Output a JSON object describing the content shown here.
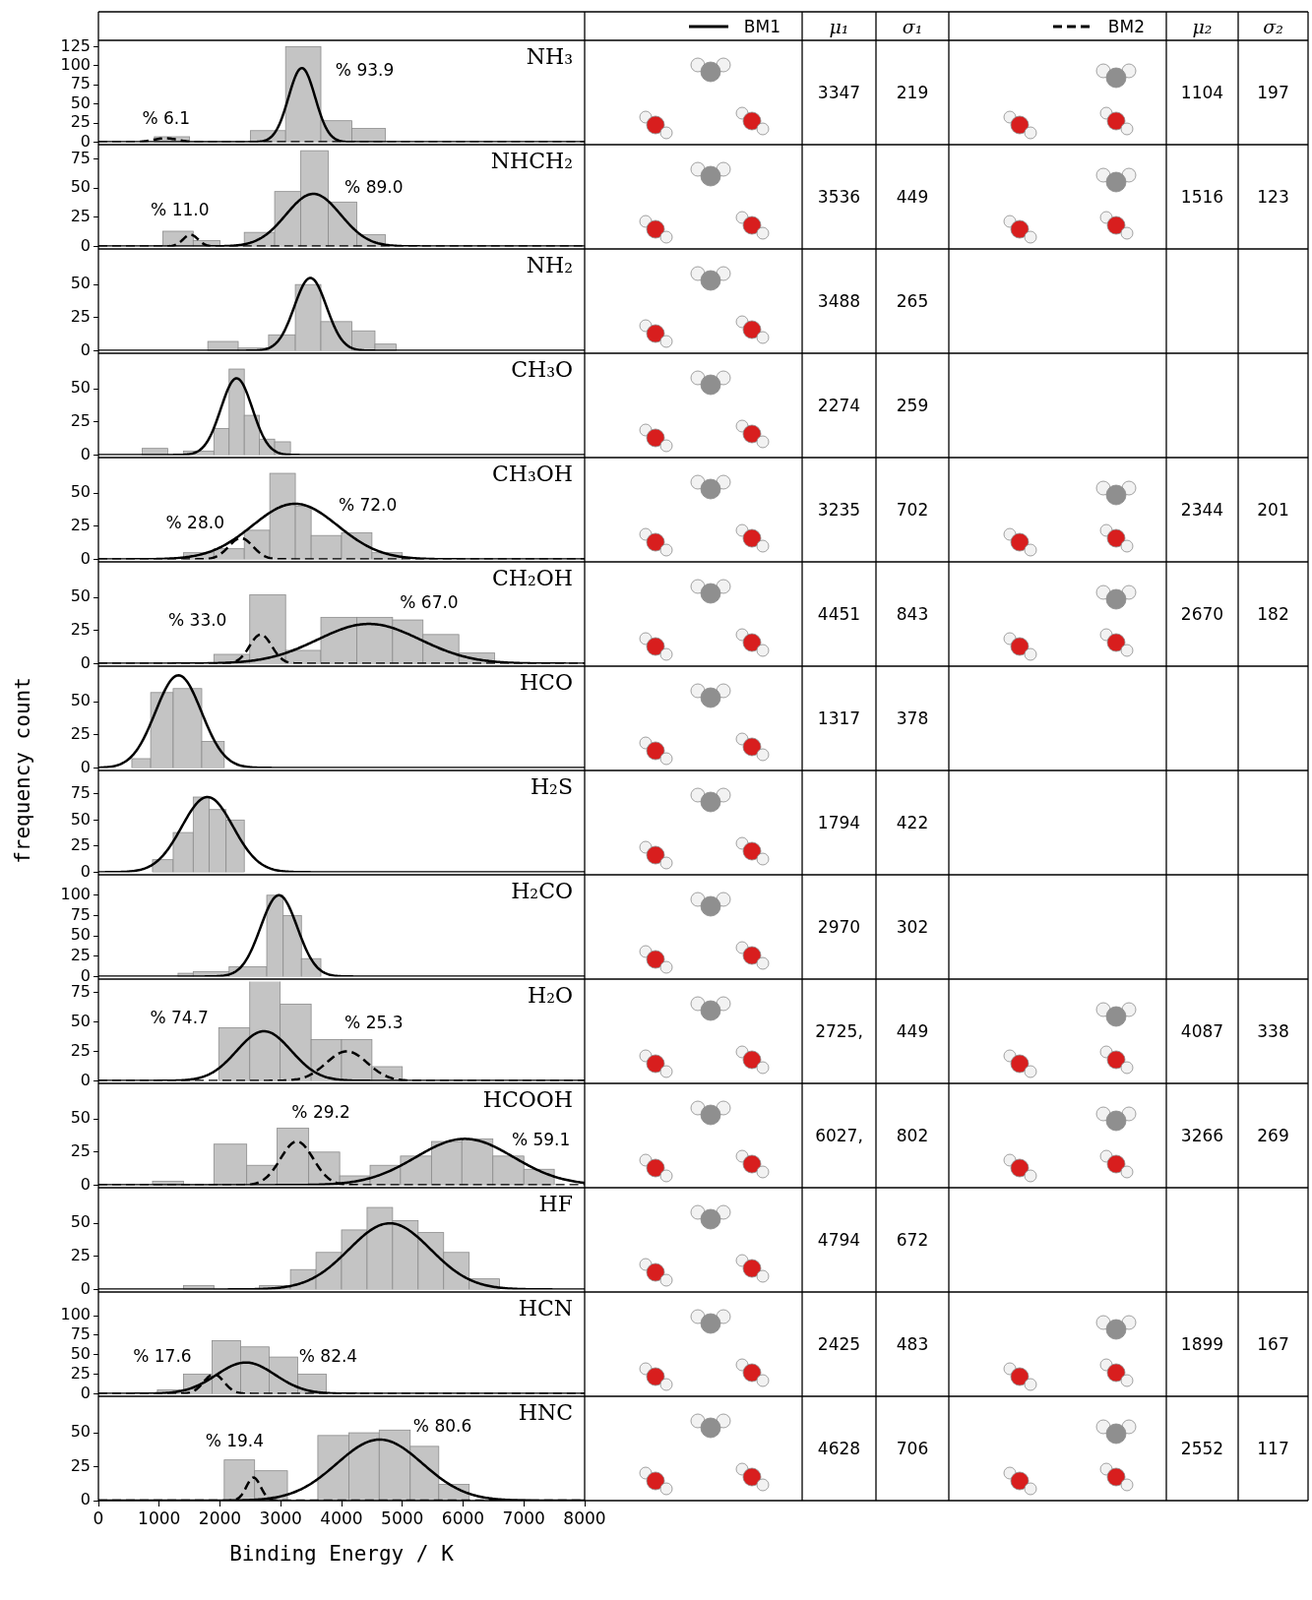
{
  "header": {
    "groups": [
      {
        "name": "BM1",
        "line_style": "solid",
        "mu": "μ₁",
        "sigma": "σ₁"
      },
      {
        "name": "BM2",
        "line_style": "dashed",
        "mu": "μ₂",
        "sigma": "σ₂"
      }
    ]
  },
  "x_axis": {
    "label": "Binding Energy / K",
    "xlim": [
      0,
      8000
    ],
    "xticks": [
      0,
      1000,
      2000,
      3000,
      4000,
      5000,
      6000,
      7000,
      8000
    ]
  },
  "y_label": "frequency count",
  "chart_data": [
    {
      "type": "histogram",
      "title": "NH₃",
      "color": "#c4c4c4",
      "ylim": [
        0,
        130
      ],
      "yticks": [
        0,
        25,
        50,
        75,
        100,
        125
      ],
      "bins": [
        920,
        1500,
        2080,
        2500,
        3080,
        3660,
        4170,
        4720
      ],
      "counts": [
        7,
        0,
        0,
        15,
        125,
        28,
        18
      ],
      "fits": [
        {
          "mu": 3347,
          "sigma": 219,
          "peak": 97,
          "color": "#000000",
          "label": "% 93.9",
          "label_x": 3900,
          "label_y": 92
        },
        {
          "mu": 1104,
          "sigma": 197,
          "peak": 5,
          "color": "#000000",
          "label": "% 6.1",
          "label_x": 720,
          "label_y": 30
        }
      ]
    },
    {
      "type": "histogram",
      "title": "NHCH₂",
      "color": "#c4c4c4",
      "ylim": [
        0,
        85
      ],
      "yticks": [
        0,
        25,
        50,
        75
      ],
      "bins": [
        1060,
        1560,
        2000,
        2400,
        2900,
        3330,
        3780,
        4250,
        4720
      ],
      "counts": [
        13,
        5,
        0,
        12,
        47,
        82,
        38,
        10
      ],
      "fits": [
        {
          "mu": 3536,
          "sigma": 449,
          "peak": 45,
          "color": "#000000",
          "label": "% 89.0",
          "label_x": 4050,
          "label_y": 50
        },
        {
          "mu": 1516,
          "sigma": 123,
          "peak": 10,
          "color": "#000000",
          "label": "% 11.0",
          "label_x": 860,
          "label_y": 30
        }
      ]
    },
    {
      "type": "histogram",
      "title": "NH₂",
      "color": "#c4c4c4",
      "ylim": [
        0,
        75
      ],
      "yticks": [
        0,
        25,
        50
      ],
      "bins": [
        1800,
        2300,
        2800,
        3240,
        3660,
        4170,
        4550,
        4900
      ],
      "counts": [
        7,
        2,
        12,
        50,
        22,
        15,
        5
      ],
      "fits": [
        {
          "mu": 3488,
          "sigma": 265,
          "peak": 55,
          "color": "#000000"
        }
      ]
    },
    {
      "type": "histogram",
      "title": "CH₃O",
      "color": "#c4c4c4",
      "ylim": [
        0,
        75
      ],
      "yticks": [
        0,
        25,
        50
      ],
      "bins": [
        720,
        1140,
        1400,
        1900,
        2150,
        2400,
        2650,
        2900,
        3160
      ],
      "counts": [
        5,
        0,
        3,
        20,
        65,
        30,
        12,
        10
      ],
      "fits": [
        {
          "mu": 2274,
          "sigma": 259,
          "peak": 58,
          "color": "#000000"
        }
      ]
    },
    {
      "type": "histogram",
      "title": "CH₃OH",
      "color": "#c4c4c4",
      "ylim": [
        0,
        75
      ],
      "yticks": [
        0,
        25,
        50
      ],
      "bins": [
        1400,
        1900,
        2400,
        2820,
        3240,
        3500,
        4000,
        4500,
        5000
      ],
      "counts": [
        5,
        8,
        22,
        65,
        40,
        18,
        20,
        5
      ],
      "fits": [
        {
          "mu": 3235,
          "sigma": 702,
          "peak": 42,
          "color": "#000000",
          "label": "% 72.0",
          "label_x": 3950,
          "label_y": 40
        },
        {
          "mu": 2344,
          "sigma": 201,
          "peak": 16,
          "color": "#000000",
          "label": "% 28.0",
          "label_x": 1110,
          "label_y": 27
        }
      ]
    },
    {
      "type": "histogram",
      "title": "CH₂OH",
      "color": "#c4c4c4",
      "ylim": [
        0,
        75
      ],
      "yticks": [
        0,
        25,
        50
      ],
      "bins": [
        1900,
        2490,
        3080,
        3660,
        4250,
        4840,
        5340,
        5930,
        6520
      ],
      "counts": [
        7,
        52,
        10,
        35,
        35,
        33,
        22,
        8
      ],
      "fits": [
        {
          "mu": 4451,
          "sigma": 843,
          "peak": 30,
          "color": "#000000",
          "label": "% 67.0",
          "label_x": 4960,
          "label_y": 45
        },
        {
          "mu": 2670,
          "sigma": 182,
          "peak": 22,
          "color": "#000000",
          "label": "% 33.0",
          "label_x": 1150,
          "label_y": 32
        }
      ]
    },
    {
      "type": "histogram",
      "title": "HCO",
      "color": "#c4c4c4",
      "ylim": [
        0,
        75
      ],
      "yticks": [
        0,
        25,
        50
      ],
      "bins": [
        550,
        860,
        1230,
        1700,
        2070
      ],
      "counts": [
        7,
        57,
        60,
        20
      ],
      "fits": [
        {
          "mu": 1317,
          "sigma": 378,
          "peak": 70,
          "color": "#000000"
        }
      ]
    },
    {
      "type": "histogram",
      "title": "H₂S",
      "color": "#c4c4c4",
      "ylim": [
        0,
        95
      ],
      "yticks": [
        0,
        25,
        50,
        75
      ],
      "bins": [
        890,
        1230,
        1560,
        1820,
        2100,
        2400
      ],
      "counts": [
        12,
        38,
        72,
        60,
        50
      ],
      "fits": [
        {
          "mu": 1794,
          "sigma": 422,
          "peak": 72,
          "color": "#000000"
        }
      ]
    },
    {
      "type": "histogram",
      "title": "H₂CO",
      "color": "#c4c4c4",
      "ylim": [
        0,
        122
      ],
      "yticks": [
        0,
        25,
        50,
        75,
        100
      ],
      "bins": [
        1310,
        1560,
        2150,
        2770,
        3040,
        3340,
        3660
      ],
      "counts": [
        4,
        6,
        12,
        100,
        75,
        22
      ],
      "fits": [
        {
          "mu": 2970,
          "sigma": 302,
          "peak": 100,
          "color": "#000000"
        }
      ]
    },
    {
      "type": "histogram",
      "title": "H₂O",
      "color": "#c4c4c4",
      "ylim": [
        0,
        84
      ],
      "yticks": [
        0,
        25,
        50,
        75
      ],
      "bins": [
        1980,
        2490,
        2990,
        3500,
        4000,
        4500,
        5000
      ],
      "counts": [
        45,
        85,
        65,
        35,
        35,
        12
      ],
      "fits": [
        {
          "mu": 2725,
          "mu_label": "2725,",
          "sigma": 449,
          "peak": 42,
          "color": "#000000",
          "label": "% 74.7",
          "label_x": 850,
          "label_y": 52
        },
        {
          "mu": 4087,
          "sigma": 338,
          "peak": 25,
          "color": "#000000",
          "label": "% 25.3",
          "label_x": 4050,
          "label_y": 48
        }
      ]
    },
    {
      "type": "histogram",
      "title": "HCOOH",
      "color": "#c4c4c4",
      "ylim": [
        0,
        75
      ],
      "yticks": [
        0,
        25,
        50
      ],
      "bins": [
        890,
        1400,
        1900,
        2440,
        2940,
        3460,
        3970,
        4470,
        4970,
        5480,
        5980,
        6490,
        7000,
        7500
      ],
      "counts": [
        3,
        0,
        31,
        15,
        43,
        25,
        7,
        15,
        22,
        33,
        35,
        22,
        12
      ],
      "fits": [
        {
          "mu": 6027,
          "mu_label": "6027,",
          "sigma": 802,
          "peak": 35,
          "color": "#000000",
          "label": "% 59.1",
          "label_x": 6800,
          "label_y": 33
        },
        {
          "mu": 3266,
          "sigma": 269,
          "peak": 33,
          "color": "#000000",
          "label": "% 29.2",
          "label_x": 3180,
          "label_y": 54
        }
      ]
    },
    {
      "type": "histogram",
      "title": "HF",
      "color": "#c4c4c4",
      "ylim": [
        0,
        75
      ],
      "yticks": [
        0,
        25,
        50
      ],
      "bins": [
        1400,
        1900,
        2650,
        3160,
        3580,
        4000,
        4420,
        4840,
        5260,
        5680,
        6100,
        6600
      ],
      "counts": [
        3,
        0,
        3,
        15,
        28,
        45,
        62,
        52,
        43,
        28,
        8
      ],
      "fits": [
        {
          "mu": 4794,
          "sigma": 672,
          "peak": 50,
          "color": "#000000"
        }
      ]
    },
    {
      "type": "histogram",
      "title": "HCN",
      "color": "#c4c4c4",
      "ylim": [
        0,
        127
      ],
      "yticks": [
        0,
        25,
        50,
        75,
        100
      ],
      "bins": [
        970,
        1400,
        1870,
        2340,
        2810,
        3280,
        3750
      ],
      "counts": [
        5,
        25,
        68,
        60,
        47,
        25
      ],
      "fits": [
        {
          "mu": 2425,
          "sigma": 483,
          "peak": 40,
          "color": "#000000",
          "label": "% 82.4",
          "label_x": 3300,
          "label_y": 46
        },
        {
          "mu": 1899,
          "sigma": 167,
          "peak": 25,
          "color": "#000000",
          "label": "% 17.6",
          "label_x": 570,
          "label_y": 46
        }
      ]
    },
    {
      "type": "histogram",
      "title": "HNC",
      "color": "#c4c4c4",
      "ylim": [
        0,
        75
      ],
      "yticks": [
        0,
        25,
        50
      ],
      "bins": [
        2070,
        2570,
        3110,
        3610,
        4120,
        4620,
        5130,
        5600,
        6100
      ],
      "counts": [
        30,
        22,
        0,
        48,
        50,
        52,
        40,
        12
      ],
      "fits": [
        {
          "mu": 4628,
          "sigma": 706,
          "peak": 45,
          "color": "#000000",
          "label": "% 80.6",
          "label_x": 5180,
          "label_y": 54
        },
        {
          "mu": 2552,
          "sigma": 117,
          "peak": 17,
          "color": "#000000",
          "label": "% 19.4",
          "label_x": 1760,
          "label_y": 43
        }
      ]
    }
  ]
}
